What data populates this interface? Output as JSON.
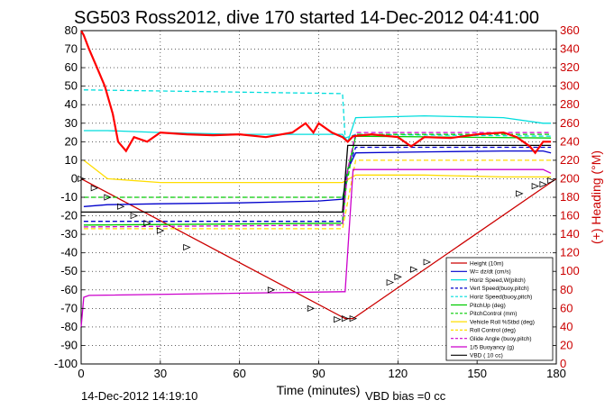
{
  "chart_data": {
    "type": "line",
    "title": "SG503 Ross2012, dive 170 started 14-Dec-2012 04:41:00",
    "xlabel": "Time (minutes)",
    "ylabel_right": "(+) Heading (°M)",
    "xlim": [
      0,
      180
    ],
    "ylim_left": [
      -100,
      80
    ],
    "ylim_right": [
      0,
      360
    ],
    "x_ticks": [
      "0",
      "30",
      "60",
      "90",
      "120",
      "150",
      "180"
    ],
    "y_ticks_left": [
      "80",
      "70",
      "60",
      "50",
      "40",
      "30",
      "20",
      "10",
      "0",
      "-10",
      "-20",
      "-30",
      "-40",
      "-50",
      "-60",
      "-70",
      "-80",
      "-90",
      "-100"
    ],
    "y_ticks_right": [
      "360",
      "340",
      "320",
      "300",
      "280",
      "260",
      "240",
      "220",
      "200",
      "180",
      "160",
      "140",
      "120",
      "100",
      "80",
      "60",
      "40",
      "20",
      "0"
    ],
    "grid": true,
    "legend_position": "bottom-right",
    "footer_left": "14-Dec-2012 14:19:10",
    "footer_right": "VBD bias =0 cc",
    "series": [
      {
        "name": "Height (10m)",
        "color": "#cc0000",
        "x": [
          0,
          100,
          103,
          180
        ],
        "y": [
          0,
          -75.5,
          -75.5,
          0
        ],
        "dash": "solid"
      },
      {
        "name": "W= dz/dt (cm/s)",
        "color": "#0000cc",
        "x": [
          1,
          10,
          30,
          60,
          90,
          99,
          101,
          104,
          130,
          160,
          175,
          178
        ],
        "y": [
          -15,
          -14,
          -13.5,
          -13,
          -12,
          -11,
          5,
          14,
          14.5,
          15,
          15,
          14
        ],
        "dash": "solid"
      },
      {
        "name": "Horiz Speed,W(pitch)",
        "color": "#00dddd",
        "x": [
          1,
          10,
          30,
          60,
          90,
          99,
          101,
          104,
          130,
          160,
          175,
          178
        ],
        "y": [
          26,
          26,
          25,
          24,
          24,
          24,
          20,
          33,
          34,
          33,
          30,
          30
        ],
        "dash": "solid"
      },
      {
        "name": "Vert Speed(buoy,pitch)",
        "color": "#0000cc",
        "x": [
          1,
          99,
          101,
          104,
          178
        ],
        "y": [
          -23,
          -23,
          5,
          17,
          17
        ],
        "dash": "dashed"
      },
      {
        "name": "Horiz Speed(buoy,pitch)",
        "color": "#00dddd",
        "x": [
          1,
          2,
          99,
          100,
          104,
          178
        ],
        "y": [
          48,
          48,
          46,
          22,
          24,
          23
        ],
        "dash": "dashed"
      },
      {
        "name": "PitchUp (deg)",
        "color": "#00cc00",
        "x": [
          1,
          99,
          101,
          104,
          178
        ],
        "y": [
          -25,
          -24,
          5,
          23,
          22
        ],
        "dash": "solid"
      },
      {
        "name": "PitchControl (mm)",
        "color": "#00cc00",
        "x": [
          1,
          99,
          101,
          104,
          178
        ],
        "y": [
          -10,
          -10,
          0,
          24,
          24
        ],
        "dash": "dashed"
      },
      {
        "name": "Vehicle Roll %Stbd (deg)",
        "color": "#ffdd00",
        "x": [
          1,
          10,
          30,
          60,
          90,
          99,
          104,
          130,
          160,
          178
        ],
        "y": [
          10,
          0,
          -2,
          -2,
          -2,
          -2,
          2,
          2,
          1,
          1
        ],
        "dash": "solid"
      },
      {
        "name": "Roll Control (deg)",
        "color": "#ffdd00",
        "x": [
          1,
          99,
          104,
          178
        ],
        "y": [
          -27,
          -27,
          10,
          10
        ],
        "dash": "dashed"
      },
      {
        "name": "Glide Angle (buoy,pitch)",
        "color": "#cc00cc",
        "x": [
          1,
          99,
          101,
          104,
          178
        ],
        "y": [
          -26,
          -25,
          5,
          25,
          25
        ],
        "dash": "dashed"
      },
      {
        "name": "1/5 Buoyancy (g)",
        "color": "#cc00cc",
        "x": [
          0,
          1,
          3,
          99,
          100,
          103,
          175,
          178
        ],
        "y": [
          -80,
          -64,
          -63,
          -61,
          -61,
          5,
          5,
          3
        ],
        "dash": "solid"
      },
      {
        "name": "VBD ( 10 cc)",
        "color": "#000000",
        "x": [
          0,
          99,
          101,
          104,
          178
        ],
        "y": [
          -18,
          -18,
          18,
          18,
          18
        ],
        "dash": "solid"
      }
    ],
    "heading_series": {
      "name": "Heading",
      "color": "#ff0000",
      "x": [
        0,
        1,
        3,
        6,
        9,
        12,
        14,
        17,
        20,
        25,
        30,
        40,
        50,
        60,
        70,
        80,
        85,
        88,
        90,
        95,
        99,
        101,
        103,
        110,
        120,
        125,
        130,
        140,
        150,
        160,
        165,
        170,
        172,
        175,
        178
      ],
      "y": [
        360,
        355,
        340,
        320,
        300,
        270,
        240,
        230,
        245,
        240,
        250,
        248,
        247,
        248,
        245,
        250,
        260,
        250,
        260,
        250,
        245,
        240,
        246,
        248,
        245,
        235,
        245,
        244,
        248,
        250,
        245,
        235,
        228,
        240,
        240
      ]
    },
    "glider_marks": {
      "x": [
        0,
        5,
        10,
        15,
        20,
        25,
        30,
        40,
        72,
        87,
        97,
        100,
        103,
        117,
        120,
        126,
        131,
        166,
        172,
        175,
        178
      ],
      "y": [
        0,
        -5,
        -10,
        -15,
        -20,
        -24,
        -28,
        -37,
        -60,
        -70,
        -76,
        -75.5,
        -75.5,
        -56,
        -53,
        -49,
        -45,
        -8,
        -4,
        -3,
        -1
      ]
    }
  }
}
